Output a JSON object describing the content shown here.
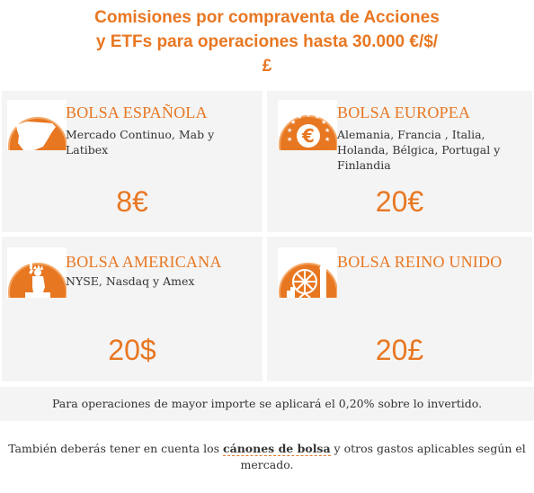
{
  "page": {
    "title_lines": [
      "Comisiones por compraventa de Acciones",
      "y ETFs para operaciones hasta 30.000 €/$/",
      "£"
    ]
  },
  "cards": [
    {
      "title": "BOLSA ESPAÑOLA",
      "description": "Mercado Continuo, Mab y Latibex",
      "price": "8€",
      "icon": "spain-map-icon"
    },
    {
      "title": "BOLSA EUROPEA",
      "description": "Alemania, Francia , Italia, Holanda, Bélgica, Portugal y Finlandia",
      "price": "20€",
      "icon": "euro-stars-icon"
    },
    {
      "title": "BOLSA AMERICANA",
      "description": "NYSE, Nasdaq y Amex",
      "price": "20$",
      "icon": "statue-of-liberty-icon"
    },
    {
      "title": "BOLSA REINO UNIDO",
      "description": "",
      "price": "20£",
      "icon": "london-eye-icon"
    }
  ],
  "note": {
    "text": "Para operaciones de mayor importe se aplicará el 0,20% sobre lo invertido."
  },
  "footer": {
    "text_before": "También deberás tener en cuenta los ",
    "link_label": "cánones de bolsa",
    "text_after": " y otros gastos aplicables según el mercado."
  },
  "colors": {
    "accent": "#e87722",
    "card_bg": "#f4f4f4"
  }
}
